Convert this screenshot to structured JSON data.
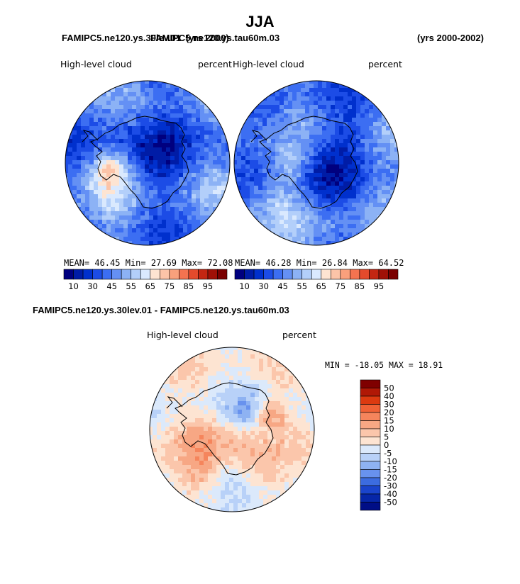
{
  "chart_data": {
    "type": "polar-contour-map",
    "title": "JJA",
    "case_titles": {
      "left": "FAMIPC5.ne120.ys.30lev.01",
      "overlap": "FAMIPC5.ne120.ys.tau60m.03",
      "year_left": "(yrs 2000)",
      "year_right": "(yrs 2000-2002)"
    },
    "panels": [
      {
        "id": "panel-1",
        "variable": "High-level cloud",
        "units": "percent",
        "stats": {
          "mean_label": "MEAN=",
          "mean": "46.45",
          "min_label": "Min=",
          "min": "27.69",
          "max_label": "Max=",
          "max": "72.08"
        }
      },
      {
        "id": "panel-2",
        "variable": "High-level cloud",
        "units": "percent",
        "stats": {
          "mean_label": "MEAN=",
          "mean": "46.28",
          "min_label": "Min=",
          "min": "26.84",
          "max_label": "Max=",
          "max": "64.52"
        }
      }
    ],
    "abs_colorbar": {
      "levels": [
        5,
        10,
        20,
        30,
        40,
        45,
        50,
        55,
        60,
        65,
        70,
        75,
        80,
        85,
        90,
        95
      ],
      "tick_labels": [
        "10",
        "30",
        "45",
        "55",
        "65",
        "75",
        "85",
        "95"
      ],
      "colors": [
        "#00007f",
        "#001ca6",
        "#0030cd",
        "#1c4ce6",
        "#3c6ef2",
        "#6490f4",
        "#8cb2f5",
        "#b3cffa",
        "#dae9fe",
        "#fde4d2",
        "#fcc4a8",
        "#f9a07c",
        "#f47350",
        "#e44a2c",
        "#c42612",
        "#a01006",
        "#7a0000"
      ]
    },
    "diff_panel": {
      "title": "FAMIPC5.ne120.ys.30lev.01 - FAMIPC5.ne120.ys.tau60m.03",
      "variable": "High-level cloud",
      "units": "percent",
      "stats": {
        "min_label": "MIN =",
        "min": "-18.05",
        "max_label": "MAX =",
        "max": "18.91"
      },
      "colorbar_labels": [
        "50",
        "40",
        "30",
        "20",
        "15",
        "10",
        "5",
        "0",
        "-5",
        "-10",
        "-15",
        "-20",
        "-30",
        "-40",
        "-50"
      ],
      "colorbar_colors": [
        "#7f0000",
        "#b01806",
        "#dc3a10",
        "#f06236",
        "#f5855c",
        "#f7a784",
        "#fbc6ab",
        "#fde4d2",
        "#dbe9fb",
        "#b8d1f8",
        "#8eb2f2",
        "#6892ee",
        "#3c6ce0",
        "#1a44cc",
        "#0626a8",
        "#000e86"
      ]
    }
  }
}
